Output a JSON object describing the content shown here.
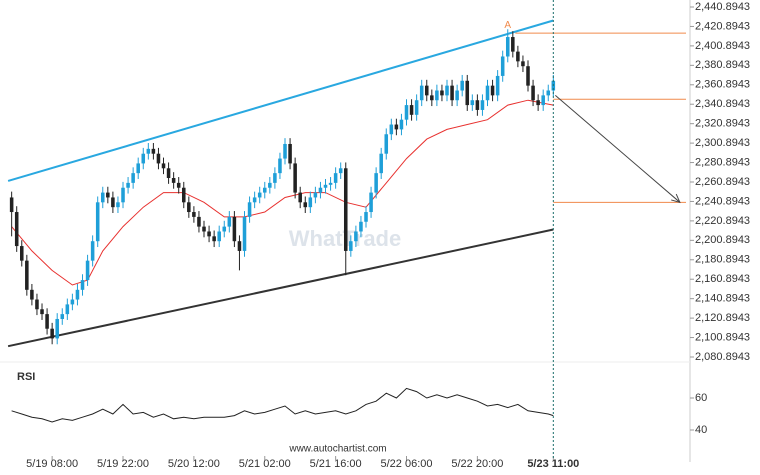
{
  "chart_data": [
    {
      "type": "candlestick",
      "watermark": "WhatTrade",
      "source": "www.autochartist.com",
      "annotation": "A",
      "annotation_x": 98,
      "annotation_value": 2418,
      "up_color": "#1e9fd8",
      "down_color": "#222222",
      "xlim": [
        -2.3,
        134
      ],
      "ylim": [
        2080.8943,
        2440.8943
      ],
      "current_x": 107,
      "xticks": [
        {
          "value": 8,
          "label": "5/19 08:00"
        },
        {
          "value": 22,
          "label": "5/19 22:00"
        },
        {
          "value": 36,
          "label": "5/20 12:00"
        },
        {
          "value": 50,
          "label": "5/21 02:00"
        },
        {
          "value": 64,
          "label": "5/21 16:00"
        },
        {
          "value": 78,
          "label": "5/22 06:00"
        },
        {
          "value": 92,
          "label": "5/22 20:00"
        },
        {
          "value": 107,
          "label": "5/23 11:00"
        }
      ],
      "yticks": [
        {
          "value": 2440.8943,
          "label": "2,440.8943"
        },
        {
          "value": 2420.8943,
          "label": "2,420.8943"
        },
        {
          "value": 2400.8943,
          "label": "2,400.8943"
        },
        {
          "value": 2380.8943,
          "label": "2,380.8943"
        },
        {
          "value": 2360.8943,
          "label": "2,360.8943"
        },
        {
          "value": 2340.8943,
          "label": "2,340.8943"
        },
        {
          "value": 2320.8943,
          "label": "2,320.8943"
        },
        {
          "value": 2300.8943,
          "label": "2,300.8943"
        },
        {
          "value": 2280.8943,
          "label": "2,280.8943"
        },
        {
          "value": 2260.8943,
          "label": "2,260.8943"
        },
        {
          "value": 2240.8943,
          "label": "2,240.8943"
        },
        {
          "value": 2220.8943,
          "label": "2,220.8943"
        },
        {
          "value": 2200.8943,
          "label": "2,200.8943"
        },
        {
          "value": 2180.8943,
          "label": "2,180.8943"
        },
        {
          "value": 2160.8943,
          "label": "2,160.8943"
        },
        {
          "value": 2140.8943,
          "label": "2,140.8943"
        },
        {
          "value": 2120.8943,
          "label": "2,120.8943"
        },
        {
          "value": 2100.8943,
          "label": "2,100.8943"
        },
        {
          "value": 2080.8943,
          "label": "2,080.8943"
        }
      ],
      "x": [
        0,
        1,
        2,
        3,
        4,
        5,
        6,
        7,
        8,
        9,
        10,
        11,
        12,
        13,
        14,
        15,
        16,
        17,
        18,
        19,
        20,
        21,
        22,
        23,
        24,
        25,
        26,
        27,
        28,
        29,
        30,
        31,
        32,
        33,
        34,
        35,
        36,
        37,
        38,
        39,
        40,
        41,
        42,
        43,
        44,
        45,
        46,
        47,
        48,
        49,
        50,
        51,
        52,
        53,
        54,
        55,
        56,
        57,
        58,
        59,
        60,
        61,
        62,
        63,
        64,
        65,
        66,
        67,
        68,
        69,
        70,
        71,
        72,
        73,
        74,
        75,
        76,
        77,
        78,
        79,
        80,
        81,
        82,
        83,
        84,
        85,
        86,
        87,
        88,
        89,
        90,
        91,
        92,
        93,
        94,
        95,
        96,
        97,
        98,
        99,
        100,
        101,
        102,
        103,
        104,
        105,
        106,
        107
      ],
      "open": [
        2245,
        2230,
        2195,
        2180,
        2150,
        2140,
        2130,
        2125,
        2110,
        2100,
        2120,
        2125,
        2135,
        2140,
        2150,
        2160,
        2180,
        2200,
        2240,
        2250,
        2245,
        2235,
        2240,
        2255,
        2260,
        2270,
        2280,
        2290,
        2295,
        2290,
        2280,
        2275,
        2265,
        2260,
        2255,
        2240,
        2230,
        2225,
        2215,
        2210,
        2205,
        2200,
        2210,
        2215,
        2225,
        2200,
        2190,
        2225,
        2240,
        2245,
        2250,
        2255,
        2260,
        2270,
        2285,
        2300,
        2280,
        2250,
        2240,
        2235,
        2245,
        2250,
        2255,
        2258,
        2260,
        2270,
        2275,
        2190,
        2200,
        2210,
        2220,
        2230,
        2250,
        2270,
        2290,
        2310,
        2320,
        2315,
        2325,
        2340,
        2330,
        2345,
        2360,
        2350,
        2345,
        2355,
        2350,
        2360,
        2345,
        2355,
        2365,
        2340,
        2345,
        2335,
        2345,
        2360,
        2350,
        2370,
        2390,
        2410,
        2395,
        2385,
        2380,
        2360,
        2345,
        2340,
        2350,
        2355
      ],
      "high": [
        2251,
        2236,
        2201,
        2186,
        2156,
        2146,
        2136,
        2131,
        2116,
        2126,
        2131,
        2141,
        2146,
        2156,
        2166,
        2186,
        2206,
        2246,
        2256,
        2256,
        2251,
        2246,
        2261,
        2266,
        2276,
        2286,
        2296,
        2301,
        2301,
        2296,
        2286,
        2281,
        2271,
        2266,
        2261,
        2246,
        2236,
        2231,
        2221,
        2216,
        2211,
        2216,
        2221,
        2231,
        2231,
        2206,
        2231,
        2246,
        2251,
        2256,
        2261,
        2266,
        2276,
        2291,
        2306,
        2306,
        2286,
        2256,
        2246,
        2251,
        2256,
        2261,
        2264,
        2266,
        2276,
        2281,
        2281,
        2206,
        2216,
        2226,
        2236,
        2256,
        2276,
        2296,
        2316,
        2326,
        2326,
        2331,
        2346,
        2346,
        2351,
        2366,
        2366,
        2356,
        2361,
        2361,
        2366,
        2366,
        2361,
        2371,
        2371,
        2351,
        2351,
        2351,
        2366,
        2366,
        2376,
        2396,
        2418,
        2416,
        2401,
        2391,
        2386,
        2366,
        2351,
        2356,
        2361,
        2371
      ],
      "low": [
        2205,
        2189,
        2174,
        2144,
        2134,
        2124,
        2119,
        2104,
        2094,
        2094,
        2114,
        2119,
        2129,
        2134,
        2144,
        2154,
        2174,
        2194,
        2234,
        2239,
        2229,
        2229,
        2234,
        2249,
        2254,
        2264,
        2274,
        2284,
        2284,
        2274,
        2269,
        2259,
        2254,
        2249,
        2234,
        2224,
        2219,
        2209,
        2204,
        2199,
        2194,
        2194,
        2204,
        2209,
        2194,
        2170,
        2184,
        2219,
        2234,
        2239,
        2244,
        2249,
        2254,
        2264,
        2279,
        2274,
        2244,
        2234,
        2229,
        2229,
        2239,
        2244,
        2249,
        2252,
        2254,
        2264,
        2165,
        2184,
        2194,
        2204,
        2214,
        2224,
        2244,
        2264,
        2284,
        2304,
        2309,
        2309,
        2319,
        2324,
        2324,
        2339,
        2344,
        2339,
        2339,
        2344,
        2344,
        2339,
        2339,
        2349,
        2334,
        2334,
        2329,
        2329,
        2339,
        2344,
        2344,
        2364,
        2384,
        2389,
        2379,
        2374,
        2354,
        2339,
        2334,
        2334,
        2344,
        2349
      ],
      "close": [
        2230,
        2195,
        2180,
        2150,
        2140,
        2130,
        2125,
        2110,
        2100,
        2120,
        2125,
        2135,
        2140,
        2150,
        2160,
        2180,
        2200,
        2240,
        2250,
        2245,
        2235,
        2240,
        2255,
        2260,
        2270,
        2280,
        2290,
        2295,
        2290,
        2280,
        2275,
        2265,
        2260,
        2255,
        2240,
        2230,
        2225,
        2215,
        2210,
        2205,
        2200,
        2210,
        2215,
        2225,
        2200,
        2190,
        2225,
        2240,
        2245,
        2250,
        2255,
        2260,
        2270,
        2285,
        2300,
        2280,
        2250,
        2240,
        2235,
        2245,
        2250,
        2255,
        2258,
        2260,
        2270,
        2275,
        2190,
        2200,
        2210,
        2220,
        2230,
        2250,
        2270,
        2290,
        2310,
        2320,
        2315,
        2325,
        2340,
        2330,
        2345,
        2360,
        2350,
        2345,
        2355,
        2350,
        2360,
        2345,
        2355,
        2365,
        2340,
        2345,
        2335,
        2345,
        2360,
        2350,
        2370,
        2390,
        2410,
        2395,
        2385,
        2380,
        2360,
        2345,
        2340,
        2350,
        2355,
        2365
      ],
      "ma": {
        "color": "#e8312f",
        "x": [
          0,
          4,
          8,
          12,
          15,
          18,
          22,
          26,
          30,
          34,
          38,
          42,
          46,
          50,
          54,
          58,
          62,
          66,
          70,
          74,
          78,
          82,
          86,
          90,
          94,
          98,
          102,
          107
        ],
        "values": [
          2215,
          2190,
          2170,
          2155,
          2160,
          2190,
          2215,
          2235,
          2250,
          2250,
          2240,
          2225,
          2225,
          2230,
          2245,
          2250,
          2250,
          2240,
          2235,
          2260,
          2285,
          2305,
          2315,
          2320,
          2325,
          2340,
          2345,
          2340
        ]
      },
      "channels": [
        {
          "color": "#29a8e0",
          "x": [
            -0.7,
            107
          ],
          "values": [
            2262,
            2427
          ]
        },
        {
          "color": "#333333",
          "x": [
            -0.7,
            107
          ],
          "values": [
            2092,
            2212
          ]
        }
      ],
      "levels_color": "#f08a4b",
      "levels": [
        {
          "value": 2414,
          "from": 99.5
        },
        {
          "value": 2346,
          "from": 107
        },
        {
          "value": 2240,
          "from": 107
        }
      ],
      "forecast": {
        "color": "#444444",
        "x": [
          107.4,
          132
        ],
        "values": [
          2350,
          2240
        ]
      }
    },
    {
      "type": "line",
      "title": "RSI",
      "color": "#222222",
      "ylim": [
        25,
        80
      ],
      "yticks": [
        40,
        60
      ],
      "x": [
        0,
        2,
        4,
        6,
        8,
        10,
        12,
        14,
        16,
        18,
        20,
        22,
        24,
        26,
        28,
        30,
        32,
        34,
        36,
        38,
        40,
        42,
        44,
        46,
        48,
        50,
        52,
        54,
        56,
        58,
        60,
        62,
        64,
        66,
        68,
        70,
        72,
        74,
        76,
        78,
        80,
        82,
        84,
        86,
        88,
        90,
        92,
        94,
        96,
        98,
        100,
        102,
        104,
        106,
        107
      ],
      "values": [
        52,
        50,
        48,
        47,
        45,
        47,
        46,
        48,
        50,
        53,
        50,
        56,
        50,
        51,
        48,
        50,
        47,
        48,
        47,
        48,
        48,
        48,
        49,
        52,
        50,
        51,
        53,
        55,
        50,
        52,
        50,
        51,
        52,
        50,
        52,
        56,
        58,
        63,
        60,
        66,
        64,
        60,
        62,
        60,
        62,
        60,
        58,
        55,
        56,
        54,
        56,
        52,
        51,
        50,
        49
      ]
    }
  ]
}
